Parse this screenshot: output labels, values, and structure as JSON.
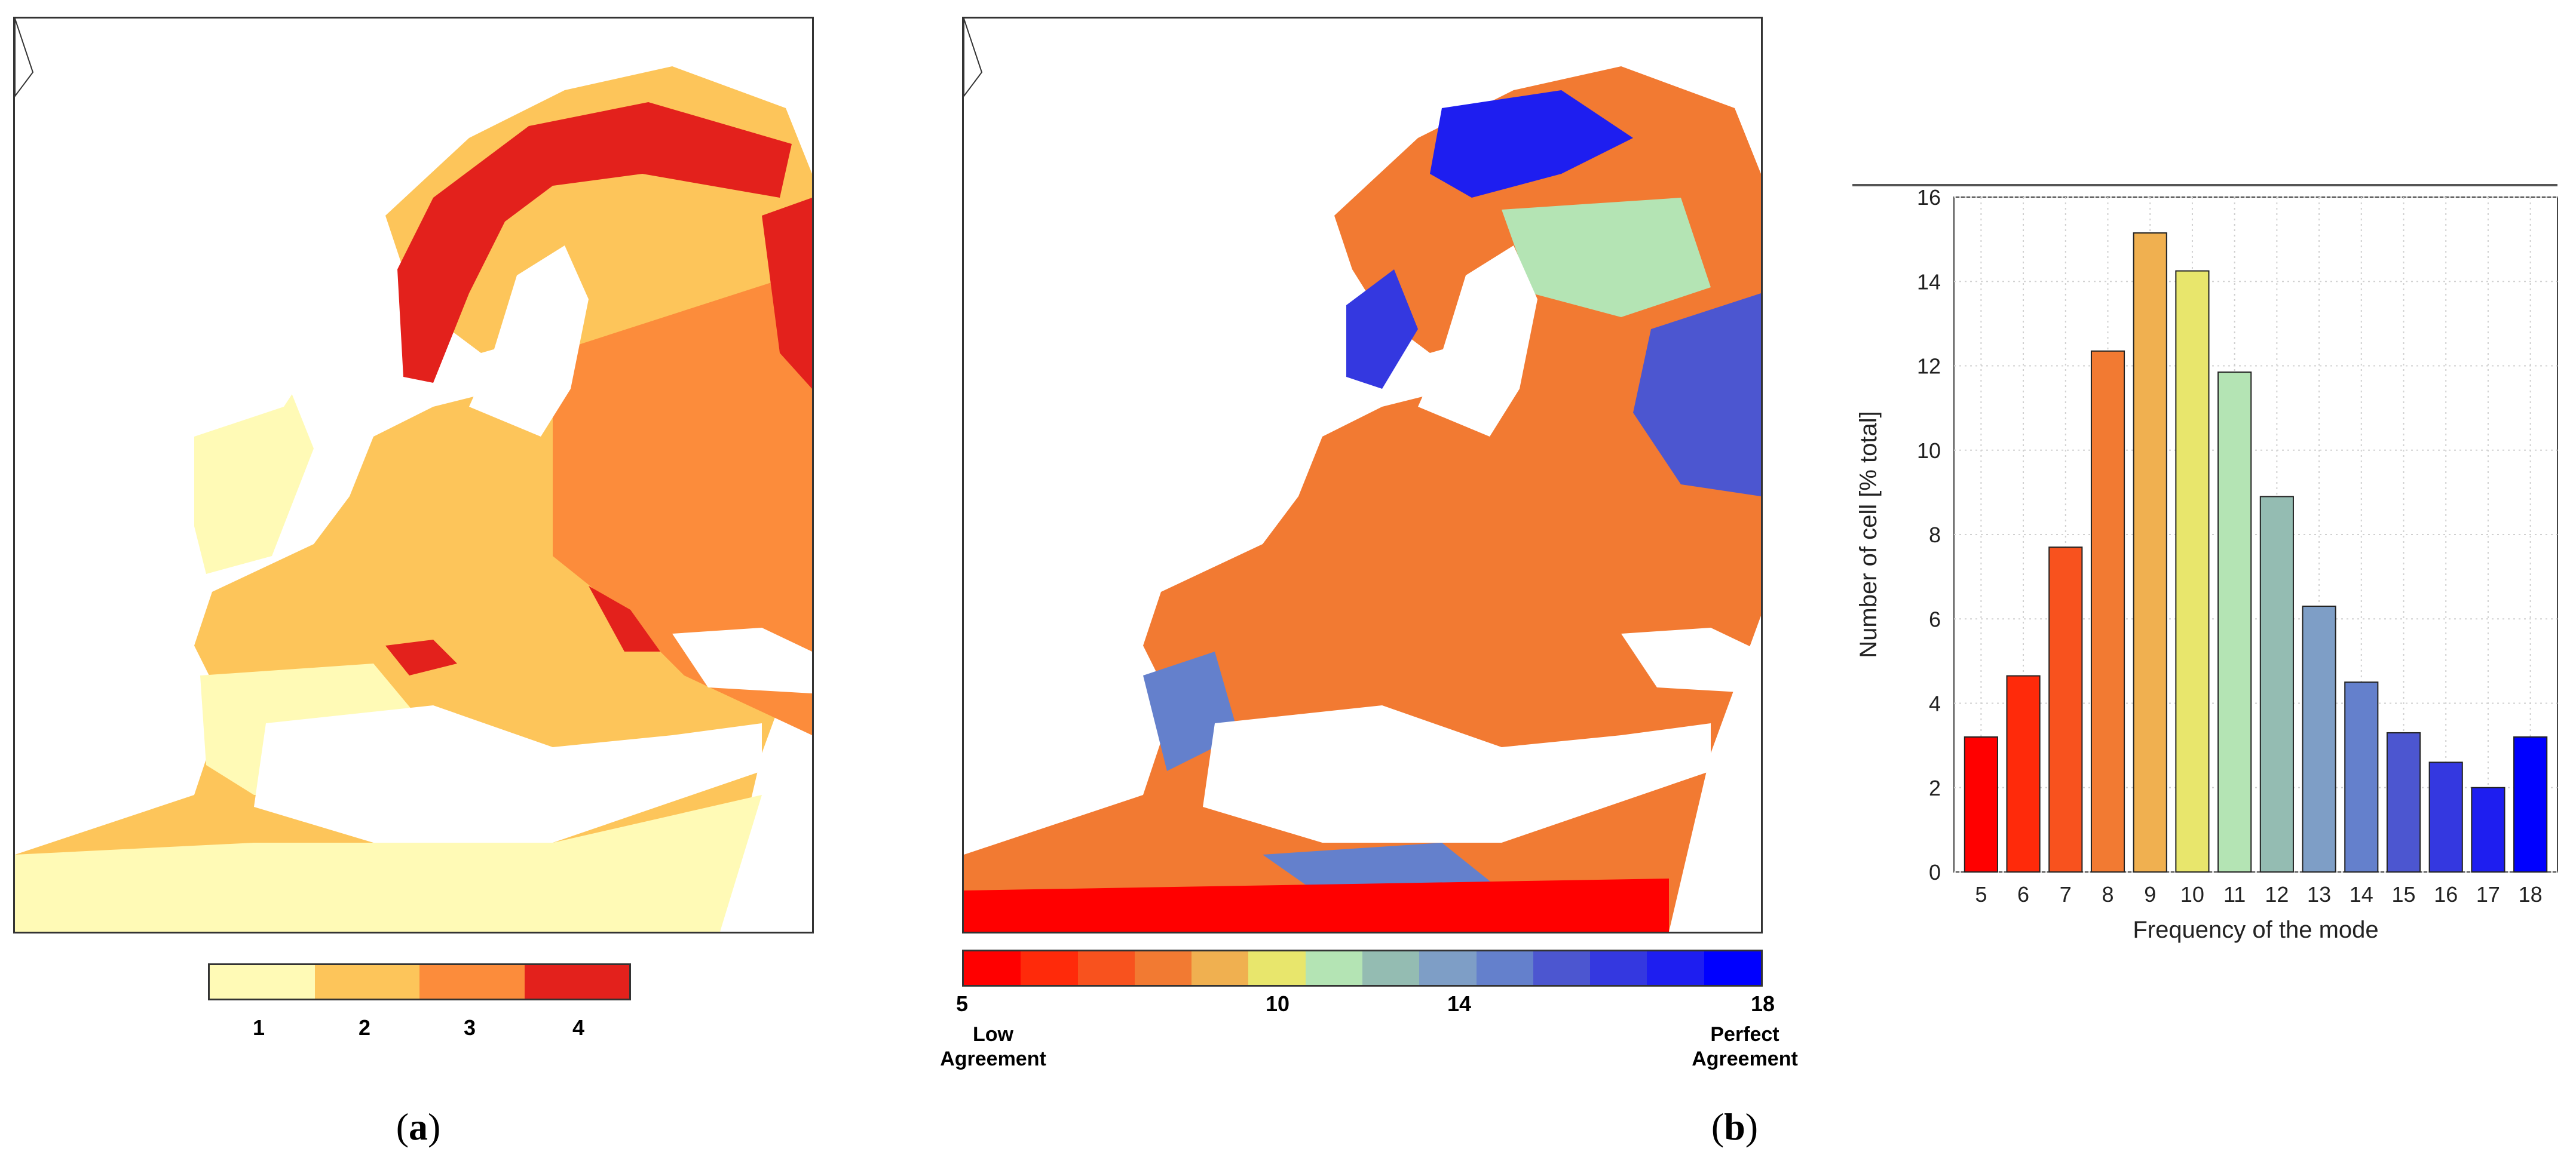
{
  "panel_a": {
    "legend": {
      "colors": [
        "#fffab6",
        "#fdc55a",
        "#fc8c3b",
        "#e3211c"
      ],
      "labels": [
        "1",
        "2",
        "3",
        "4"
      ]
    },
    "caption": {
      "open": "(",
      "letter": "a",
      "close": ")"
    }
  },
  "panel_b": {
    "legend": {
      "colors": [
        "#ff0000",
        "#ff2a0a",
        "#f8521e",
        "#f27a32",
        "#f0b050",
        "#e8e66c",
        "#b4e4b4",
        "#94bcb2",
        "#7e9ec6",
        "#6480cc",
        "#4c56d0",
        "#3438e0",
        "#1e1ef0",
        "#0000ff"
      ],
      "ticks": [
        "5",
        "10",
        "14",
        "18"
      ],
      "low_label": [
        "Low",
        "Agreement"
      ],
      "high_label": [
        "Perfect",
        "Agreement"
      ]
    },
    "caption": {
      "open": "(",
      "letter": "b",
      "close": ")"
    }
  },
  "chart_data": {
    "type": "bar",
    "title": "",
    "xlabel": "Frequency of the mode",
    "ylabel": "Number of cell [% total]",
    "categories": [
      "5",
      "6",
      "7",
      "8",
      "9",
      "10",
      "11",
      "12",
      "13",
      "14",
      "15",
      "16",
      "17",
      "18"
    ],
    "values": [
      3.2,
      4.65,
      7.7,
      12.35,
      15.15,
      14.25,
      11.85,
      8.9,
      6.3,
      4.5,
      3.3,
      2.6,
      2.0,
      3.2
    ],
    "colors": [
      "#ff0000",
      "#ff2a0a",
      "#f8521e",
      "#f27a32",
      "#f0b050",
      "#e8e66c",
      "#b4e4b4",
      "#94bcb2",
      "#7e9ec6",
      "#6480cc",
      "#4c56d0",
      "#3438e0",
      "#1e1ef0",
      "#0000ff"
    ],
    "ylim": [
      0,
      16
    ],
    "yticks": [
      "0",
      "2",
      "4",
      "6",
      "8",
      "10",
      "12",
      "14",
      "16"
    ]
  }
}
